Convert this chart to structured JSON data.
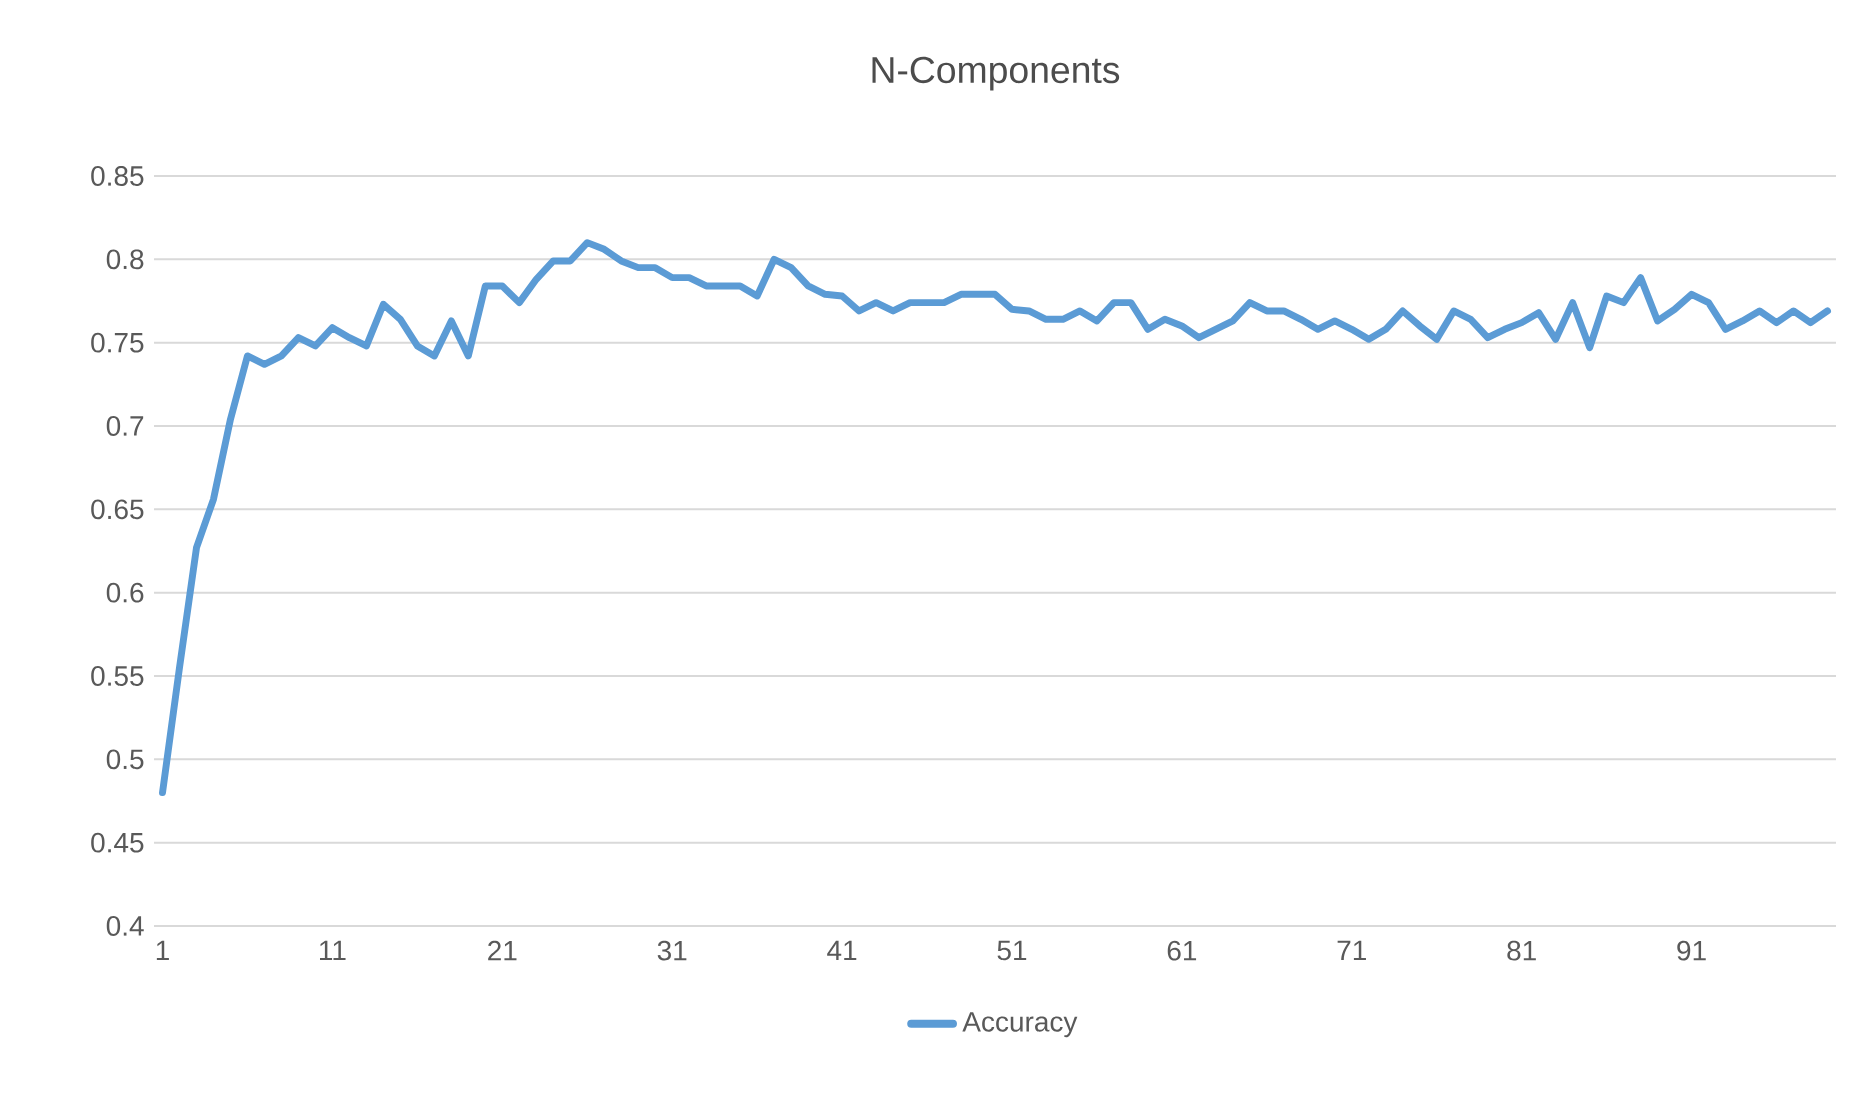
{
  "chart_data": {
    "type": "line",
    "title": "N-Components",
    "categories": [
      "1",
      null,
      null,
      null,
      null,
      null,
      null,
      null,
      null,
      null,
      "11",
      null,
      null,
      null,
      null,
      null,
      null,
      null,
      null,
      null,
      "21",
      null,
      null,
      null,
      null,
      null,
      null,
      null,
      null,
      null,
      "31",
      null,
      null,
      null,
      null,
      null,
      null,
      null,
      null,
      null,
      "41",
      null,
      null,
      null,
      null,
      null,
      null,
      null,
      null,
      null,
      "51",
      null,
      null,
      null,
      null,
      null,
      null,
      null,
      null,
      null,
      "61",
      null,
      null,
      null,
      null,
      null,
      null,
      null,
      null,
      null,
      "71",
      null,
      null,
      null,
      null,
      null,
      null,
      null,
      null,
      null,
      "81",
      null,
      null,
      null,
      null,
      null,
      null,
      null,
      null,
      null,
      "91",
      null,
      null,
      null,
      null,
      null,
      null,
      null,
      null
    ],
    "series": [
      {
        "name": "Accuracy",
        "color": "#5b9bd5",
        "values": [
          0.48,
          0.555,
          0.627,
          0.656,
          0.704,
          0.742,
          0.737,
          0.742,
          0.753,
          0.748,
          0.759,
          0.753,
          0.748,
          0.773,
          0.764,
          0.748,
          0.742,
          0.763,
          0.742,
          0.784,
          0.784,
          0.774,
          0.788,
          0.799,
          0.799,
          0.81,
          0.806,
          0.799,
          0.795,
          0.795,
          0.789,
          0.789,
          0.784,
          0.784,
          0.784,
          0.778,
          0.8,
          0.795,
          0.784,
          0.779,
          0.778,
          0.769,
          0.774,
          0.769,
          0.774,
          0.774,
          0.774,
          0.779,
          0.779,
          0.779,
          0.77,
          0.769,
          0.764,
          0.764,
          0.769,
          0.763,
          0.774,
          0.774,
          0.758,
          0.764,
          0.76,
          0.753,
          0.758,
          0.763,
          0.774,
          0.769,
          0.769,
          0.764,
          0.758,
          0.763,
          0.758,
          0.752,
          0.758,
          0.769,
          0.76,
          0.752,
          0.769,
          0.764,
          0.753,
          0.758,
          0.762,
          0.768,
          0.752,
          0.774,
          0.747,
          0.778,
          0.774,
          0.789,
          0.763,
          0.77,
          0.779,
          0.774,
          0.758,
          0.763,
          0.769,
          0.762,
          0.769,
          0.762,
          0.769
        ]
      }
    ],
    "ylim": [
      0.4,
      0.85
    ],
    "yticks": [
      0.4,
      0.45,
      0.5,
      0.55,
      0.6,
      0.65,
      0.7,
      0.75,
      0.8,
      0.85
    ],
    "grid": "y",
    "legend": "bottom"
  }
}
